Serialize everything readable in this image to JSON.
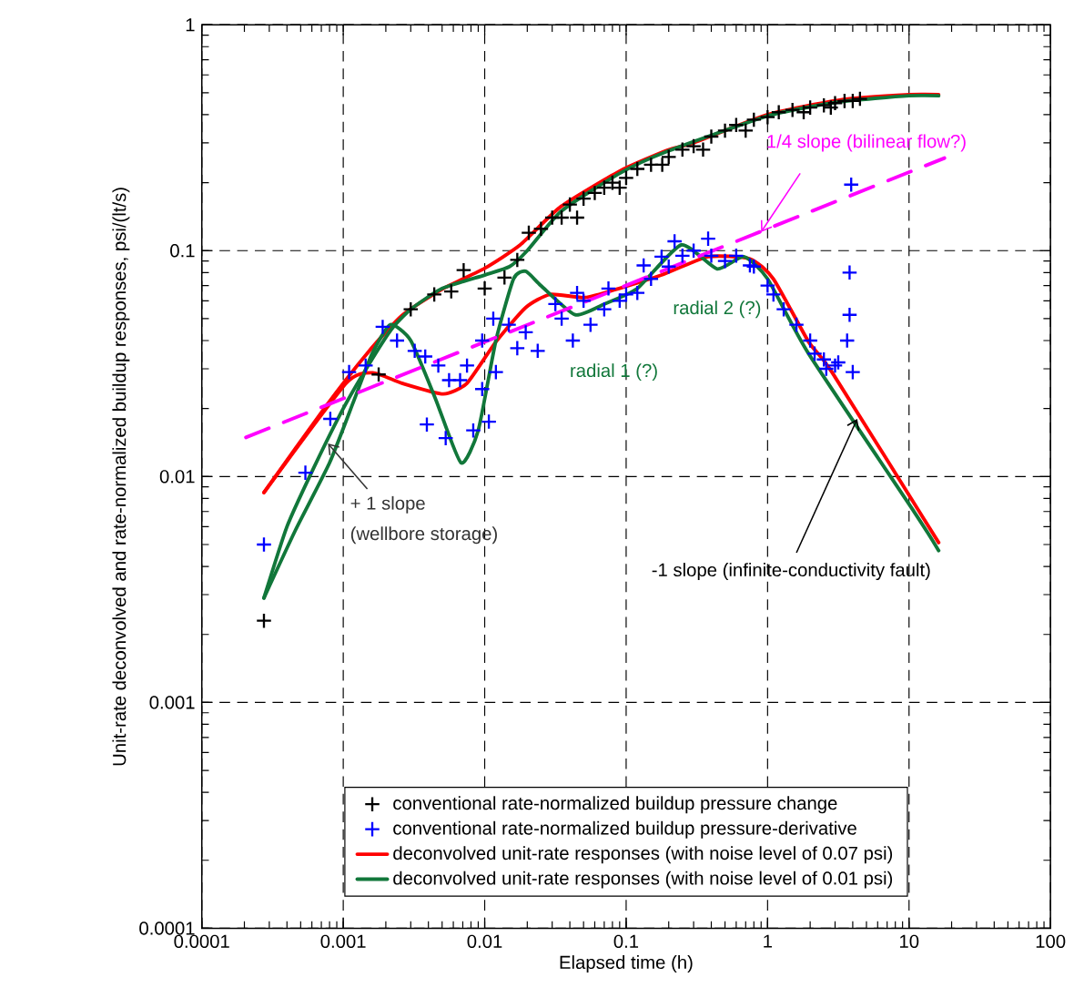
{
  "chart_data": {
    "type": "line",
    "xlabel": "Elapsed time (h)",
    "ylabel": "Unit-rate deconvolved and rate-normalized buildup responses, psi/(lt/s)",
    "log": "xy",
    "grid": true,
    "legend": "bottom",
    "xlim": [
      0.0001,
      100
    ],
    "ylim": [
      0.0001,
      1
    ],
    "xticks": [
      0.0001,
      0.001,
      0.01,
      0.1,
      1,
      10,
      100
    ],
    "yticks": [
      0.0001,
      0.001,
      0.01,
      0.1,
      1
    ],
    "series": [
      {
        "type": "scatter",
        "marker": "cross",
        "name": "conventional rate-normalized buildup pressure change",
        "color": "#000000",
        "x": [
          0.000275,
          0.00178,
          0.003,
          0.0044,
          0.0058,
          0.0071,
          0.01,
          0.0138,
          0.017,
          0.0205,
          0.025,
          0.03,
          0.035,
          0.04,
          0.05,
          0.06,
          0.07,
          0.08,
          0.1,
          0.12,
          0.15,
          0.2,
          0.25,
          0.3,
          0.4,
          0.5,
          0.6,
          0.8,
          1.0,
          1.2,
          1.5,
          2.0,
          2.5,
          3.0,
          3.5,
          4.0,
          4.5,
          0.045,
          0.09,
          0.18,
          0.35,
          0.7,
          1.8,
          2.8
        ],
        "values": [
          0.0023,
          0.0283,
          0.055,
          0.064,
          0.066,
          0.082,
          0.068,
          0.076,
          0.091,
          0.12,
          0.125,
          0.14,
          0.14,
          0.16,
          0.17,
          0.18,
          0.19,
          0.2,
          0.21,
          0.23,
          0.24,
          0.26,
          0.28,
          0.29,
          0.32,
          0.34,
          0.36,
          0.38,
          0.39,
          0.41,
          0.42,
          0.43,
          0.44,
          0.45,
          0.46,
          0.46,
          0.47,
          0.14,
          0.19,
          0.24,
          0.28,
          0.34,
          0.41,
          0.43
        ]
      },
      {
        "type": "scatter",
        "marker": "cross",
        "name": "conventional rate-normalized buildup pressure-derivative",
        "color": "#0000ff",
        "x": [
          0.000275,
          0.00054,
          0.00081,
          0.0011,
          0.00144,
          0.0019,
          0.0024,
          0.0032,
          0.0038,
          0.0039,
          0.0053,
          0.0047,
          0.0056,
          0.0067,
          0.0075,
          0.0083,
          0.0096,
          0.0096,
          0.0107,
          0.012,
          0.0115,
          0.0148,
          0.0195,
          0.017,
          0.0237,
          0.0316,
          0.042,
          0.056,
          0.075,
          0.1,
          0.133,
          0.178,
          0.38,
          0.75,
          1.1,
          1.6,
          2.15,
          2.6,
          3.16,
          3.65,
          3.8,
          3.8,
          3.9,
          4.0,
          0.035,
          0.045,
          0.05,
          0.07,
          0.09,
          0.12,
          0.15,
          0.2,
          0.22,
          0.25,
          0.3,
          0.4,
          0.5,
          0.6,
          0.8,
          1.0,
          1.3,
          2.0,
          2.5,
          3.0
        ],
        "values": [
          0.005,
          0.0104,
          0.018,
          0.029,
          0.031,
          0.046,
          0.04,
          0.036,
          0.034,
          0.017,
          0.0148,
          0.031,
          0.0267,
          0.0267,
          0.031,
          0.016,
          0.04,
          0.0244,
          0.0175,
          0.029,
          0.05,
          0.047,
          0.0435,
          0.037,
          0.036,
          0.058,
          0.04,
          0.047,
          0.068,
          0.064,
          0.086,
          0.094,
          0.113,
          0.086,
          0.064,
          0.047,
          0.035,
          0.03,
          0.032,
          0.04,
          0.052,
          0.08,
          0.196,
          0.029,
          0.05,
          0.065,
          0.06,
          0.055,
          0.06,
          0.065,
          0.075,
          0.085,
          0.11,
          0.095,
          0.1,
          0.095,
          0.09,
          0.095,
          0.085,
          0.07,
          0.055,
          0.04,
          0.033,
          0.031
        ]
      },
      {
        "name": "deconvolved unit-rate responses (with noise level of 0.07 psi)",
        "color": "#ff0000",
        "x": [
          0.000275,
          0.00075,
          0.00147,
          0.0026,
          0.0051,
          0.01,
          0.0178,
          0.0347,
          0.09,
          0.195,
          0.3,
          1.0,
          3.16,
          10,
          16.2
        ],
        "values": [
          0.0085,
          0.0204,
          0.035,
          0.0516,
          0.068,
          0.0836,
          0.106,
          0.157,
          0.225,
          0.278,
          0.3,
          0.4,
          0.463,
          0.49,
          0.49
        ]
      },
      {
        "name": "deconvolved unit-rate responses (with noise level of 0.01 psi)",
        "color": "#11773a",
        "x": [
          0.000275,
          0.0004,
          0.0006,
          0.001,
          0.0015,
          0.0022,
          0.003,
          0.005,
          0.01,
          0.015,
          0.02,
          0.035,
          0.09,
          0.195,
          1.0,
          3.16,
          10,
          16.2
        ],
        "values": [
          0.0029,
          0.006,
          0.0105,
          0.02,
          0.031,
          0.045,
          0.055,
          0.068,
          0.078,
          0.085,
          0.1,
          0.15,
          0.22,
          0.275,
          0.395,
          0.455,
          0.485,
          0.485
        ]
      },
      {
        "color": "#ff0000",
        "x": [
          0.000275,
          0.00105,
          0.00162,
          0.0026,
          0.0051,
          0.0075,
          0.012,
          0.0195,
          0.029,
          0.051,
          0.089,
          0.178,
          0.38,
          0.75,
          1.1,
          1.95,
          2.85,
          16.2
        ],
        "values": [
          0.0085,
          0.0259,
          0.0288,
          0.0259,
          0.0232,
          0.0259,
          0.0395,
          0.056,
          0.064,
          0.062,
          0.068,
          0.078,
          0.094,
          0.092,
          0.075,
          0.0395,
          0.029,
          0.0051
        ]
      },
      {
        "color": "#11773a",
        "x": [
          0.000275,
          0.00046,
          0.0008,
          0.0012,
          0.0016,
          0.00215,
          0.003,
          0.0045,
          0.0068,
          0.009,
          0.012,
          0.016,
          0.0195,
          0.025,
          0.0436,
          0.07,
          0.12,
          0.245,
          0.44,
          0.68,
          1.0,
          1.95,
          11,
          16.2
        ],
        "values": [
          0.0029,
          0.0058,
          0.0115,
          0.022,
          0.035,
          0.047,
          0.04,
          0.022,
          0.0115,
          0.016,
          0.04,
          0.075,
          0.081,
          0.07,
          0.052,
          0.058,
          0.068,
          0.106,
          0.083,
          0.094,
          0.075,
          0.035,
          0.0069,
          0.0047
        ]
      },
      {
        "line_style": "dashed",
        "color": "#ff00ff",
        "x": [
          0.000205,
          17.8
        ],
        "values": [
          0.0149,
          0.257
        ]
      }
    ],
    "annotations": [
      {
        "text": "1/4 slope (bilinear flow?)",
        "x": 0.9,
        "y": 0.121
      },
      "radial 2 (?)",
      "radial 1 (?)",
      {
        "text": "+ 1 slope",
        "x": 0.00078,
        "y": 0.014
      },
      "(wellbore storage)",
      {
        "text": "-1 slope (infinite-conductivity fault)",
        "x": 4.3,
        "y": 0.018
      }
    ]
  }
}
